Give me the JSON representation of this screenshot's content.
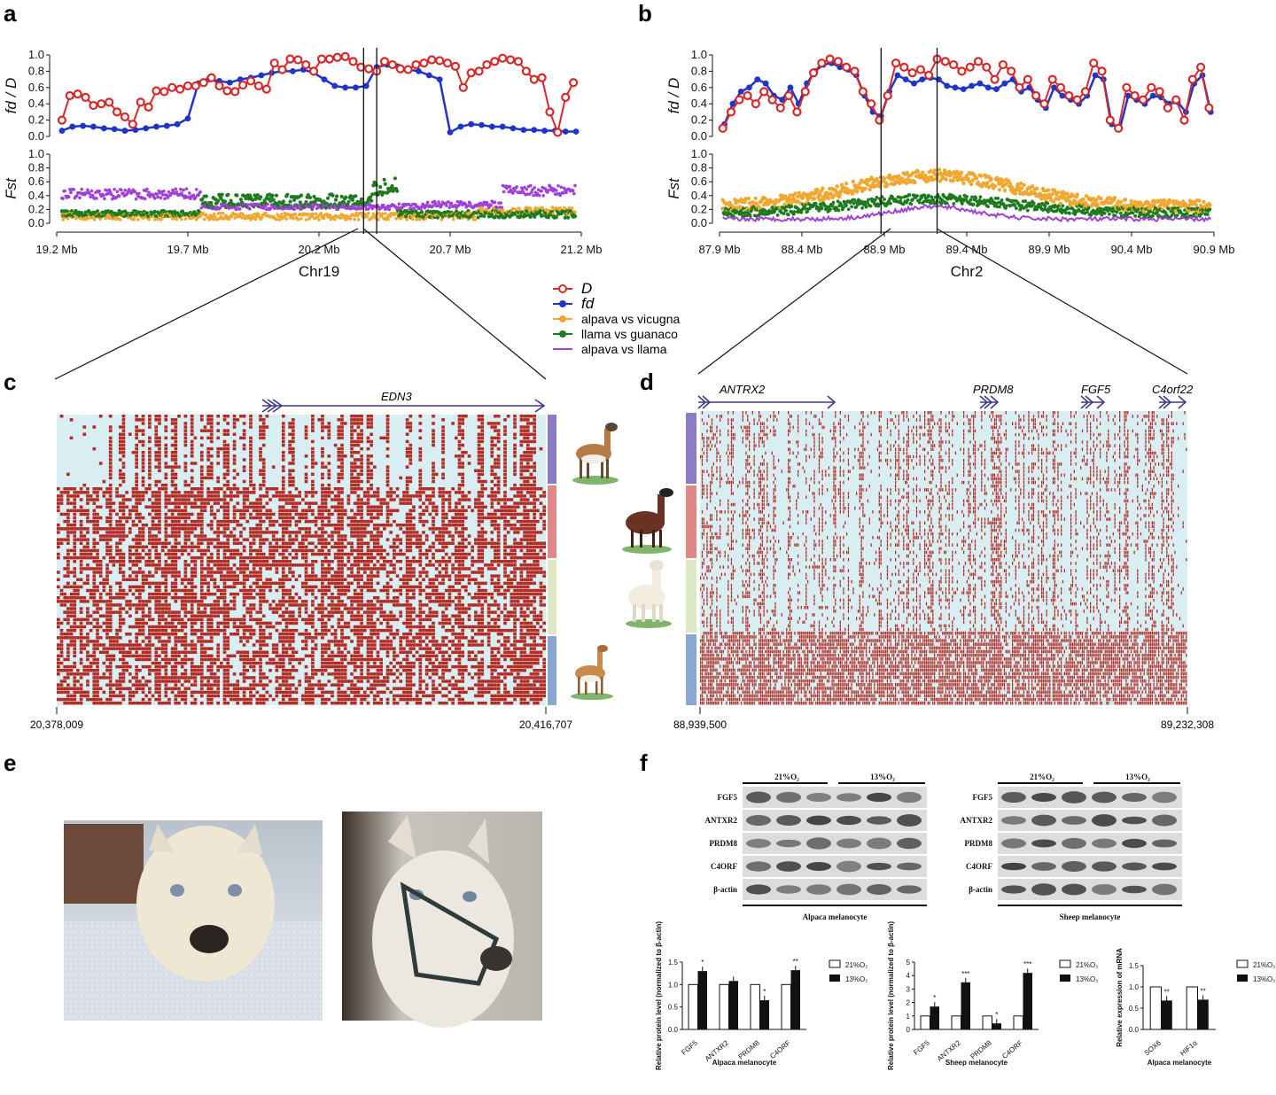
{
  "panels": {
    "a": "a",
    "b": "b",
    "c": "c",
    "d": "d",
    "e": "e",
    "f": "f"
  },
  "colors": {
    "D": "#d42a2a",
    "fd": "#1f35c8",
    "alp_vic": "#f0a830",
    "lla_gua": "#1e7a1e",
    "alp_lla": "#a040d8",
    "hap_light": "#d9eef2",
    "hap_dark": "#b22a22",
    "bar_c_1": "#8c7cc4",
    "bar_c_2": "#e08888",
    "bar_c_3": "#dfe8c6",
    "bar_c_4": "#8aa6d2"
  },
  "legend": [
    {
      "key": "D",
      "label": "D",
      "italic": true,
      "marker": "open"
    },
    {
      "key": "fd",
      "label": "fd",
      "italic": true,
      "marker": "filled"
    },
    {
      "key": "alp_vic",
      "label": "alpava vs vicugna",
      "marker": "filled"
    },
    {
      "key": "lla_gua",
      "label": "llama  vs guanaco",
      "marker": "filled"
    },
    {
      "key": "alp_lla",
      "label": "alpava vs llama",
      "marker": "line"
    }
  ],
  "chart_data": [
    {
      "id": "a",
      "type": "scatter",
      "xlabel": "Chr19",
      "x_range": [
        19.2,
        21.2
      ],
      "x_ticks": [
        19.2,
        19.7,
        20.2,
        20.7,
        21.2
      ],
      "x_tick_labels": [
        "19.2 Mb",
        "19.7 Mb",
        "20.2 Mb",
        "20.7 Mb",
        "21.2 Mb"
      ],
      "top": {
        "ylabel": "fd / D",
        "ylim": [
          0,
          1
        ],
        "y_ticks": [
          "0.0",
          "0.2",
          "0.4",
          "0.6",
          "0.8",
          "1.0"
        ],
        "D_x": [
          19.22,
          19.25,
          19.28,
          19.31,
          19.34,
          19.37,
          19.4,
          19.43,
          19.46,
          19.49,
          19.52,
          19.55,
          19.58,
          19.61,
          19.64,
          19.67,
          19.7,
          19.73,
          19.76,
          19.79,
          19.82,
          19.85,
          19.88,
          19.91,
          19.94,
          19.97,
          20.0,
          20.03,
          20.06,
          20.09,
          20.12,
          20.15,
          20.18,
          20.21,
          20.24,
          20.27,
          20.3,
          20.33,
          20.36,
          20.39,
          20.42,
          20.45,
          20.48,
          20.51,
          20.54,
          20.57,
          20.6,
          20.63,
          20.66,
          20.69,
          20.72,
          20.75,
          20.78,
          20.81,
          20.84,
          20.87,
          20.9,
          20.93,
          20.96,
          20.99,
          21.02,
          21.05,
          21.08,
          21.11,
          21.14,
          21.17
        ],
        "D_y": [
          0.2,
          0.5,
          0.52,
          0.48,
          0.38,
          0.4,
          0.42,
          0.3,
          0.24,
          0.15,
          0.42,
          0.36,
          0.56,
          0.55,
          0.6,
          0.58,
          0.62,
          0.62,
          0.66,
          0.72,
          0.62,
          0.56,
          0.55,
          0.63,
          0.68,
          0.62,
          0.58,
          0.9,
          0.82,
          0.95,
          0.94,
          0.88,
          0.8,
          0.95,
          0.95,
          0.97,
          0.98,
          0.92,
          0.85,
          0.83,
          0.8,
          0.92,
          0.88,
          0.83,
          0.82,
          0.88,
          0.9,
          0.94,
          0.93,
          0.9,
          0.86,
          0.6,
          0.78,
          0.8,
          0.88,
          0.92,
          0.96,
          0.94,
          0.92,
          0.8,
          0.7,
          0.72,
          0.3,
          0.05,
          0.48,
          0.66
        ],
        "fd_x": [
          19.22,
          19.26,
          19.3,
          19.34,
          19.38,
          19.42,
          19.46,
          19.5,
          19.54,
          19.58,
          19.62,
          19.66,
          19.7,
          19.74,
          19.78,
          19.82,
          19.86,
          19.9,
          19.94,
          19.98,
          20.02,
          20.06,
          20.1,
          20.14,
          20.18,
          20.22,
          20.26,
          20.3,
          20.34,
          20.38,
          20.42,
          20.46,
          20.5,
          20.54,
          20.58,
          20.62,
          20.66,
          20.7,
          20.74,
          20.78,
          20.82,
          20.86,
          20.9,
          20.94,
          20.98,
          21.02,
          21.06,
          21.1,
          21.14,
          21.18
        ],
        "fd_y": [
          0.07,
          0.12,
          0.13,
          0.12,
          0.1,
          0.09,
          0.07,
          0.08,
          0.1,
          0.12,
          0.13,
          0.15,
          0.22,
          0.65,
          0.7,
          0.68,
          0.66,
          0.7,
          0.72,
          0.75,
          0.78,
          0.8,
          0.8,
          0.82,
          0.78,
          0.7,
          0.62,
          0.6,
          0.6,
          0.62,
          0.85,
          0.88,
          0.86,
          0.82,
          0.8,
          0.75,
          0.7,
          0.05,
          0.12,
          0.15,
          0.14,
          0.12,
          0.12,
          0.1,
          0.08,
          0.08,
          0.07,
          0.07,
          0.06,
          0.06
        ]
      },
      "bottom": {
        "ylabel": "Fst",
        "ylim": [
          0,
          1
        ],
        "y_ticks": [
          "0.0",
          "0.2",
          "0.4",
          "0.6",
          "0.8",
          "1.0"
        ]
      }
    },
    {
      "id": "b",
      "type": "scatter",
      "xlabel": "Chr2",
      "x_range": [
        87.9,
        90.9
      ],
      "x_ticks": [
        87.9,
        88.4,
        88.9,
        89.4,
        89.9,
        90.4,
        90.9
      ],
      "x_tick_labels": [
        "87.9 Mb",
        "88.4 Mb",
        "88.9 Mb",
        "89.4 Mb",
        "89.9 Mb",
        "90.4 Mb",
        "90.9 Mb"
      ],
      "top": {
        "ylabel": "fd / D",
        "ylim": [
          0,
          1
        ],
        "y_ticks": [
          "0.0",
          "0.2",
          "0.4",
          "0.6",
          "0.8",
          "1.0"
        ],
        "D_x": [
          87.92,
          87.97,
          88.02,
          88.07,
          88.12,
          88.17,
          88.22,
          88.27,
          88.32,
          88.37,
          88.42,
          88.47,
          88.52,
          88.57,
          88.62,
          88.67,
          88.72,
          88.77,
          88.82,
          88.87,
          88.92,
          88.97,
          89.02,
          89.07,
          89.12,
          89.17,
          89.22,
          89.27,
          89.32,
          89.37,
          89.42,
          89.47,
          89.52,
          89.57,
          89.62,
          89.67,
          89.72,
          89.77,
          89.82,
          89.87,
          89.92,
          89.97,
          90.02,
          90.07,
          90.12,
          90.17,
          90.22,
          90.27,
          90.32,
          90.37,
          90.42,
          90.47,
          90.52,
          90.57,
          90.62,
          90.67,
          90.72,
          90.77,
          90.82,
          90.87
        ],
        "D_y": [
          0.1,
          0.3,
          0.45,
          0.5,
          0.4,
          0.55,
          0.45,
          0.35,
          0.5,
          0.3,
          0.55,
          0.78,
          0.9,
          0.95,
          0.92,
          0.85,
          0.8,
          0.55,
          0.4,
          0.2,
          0.5,
          0.9,
          0.85,
          0.78,
          0.82,
          0.75,
          0.95,
          0.92,
          0.88,
          0.8,
          0.85,
          0.92,
          0.85,
          0.7,
          0.88,
          0.8,
          0.6,
          0.7,
          0.5,
          0.4,
          0.7,
          0.6,
          0.5,
          0.45,
          0.55,
          0.9,
          0.8,
          0.2,
          0.1,
          0.6,
          0.5,
          0.45,
          0.6,
          0.55,
          0.35,
          0.45,
          0.2,
          0.7,
          0.85,
          0.35
        ],
        "fd_x": [
          87.93,
          87.98,
          88.03,
          88.08,
          88.13,
          88.18,
          88.23,
          88.28,
          88.33,
          88.38,
          88.43,
          88.48,
          88.53,
          88.58,
          88.63,
          88.68,
          88.73,
          88.78,
          88.83,
          88.88,
          88.93,
          88.98,
          89.03,
          89.08,
          89.13,
          89.18,
          89.23,
          89.28,
          89.33,
          89.38,
          89.43,
          89.48,
          89.53,
          89.58,
          89.63,
          89.68,
          89.73,
          89.78,
          89.83,
          89.88,
          89.93,
          89.98,
          90.03,
          90.08,
          90.13,
          90.18,
          90.23,
          90.28,
          90.33,
          90.38,
          90.43,
          90.48,
          90.53,
          90.58,
          90.63,
          90.68,
          90.73,
          90.78,
          90.83,
          90.88
        ],
        "fd_y": [
          0.15,
          0.4,
          0.55,
          0.6,
          0.7,
          0.65,
          0.5,
          0.45,
          0.6,
          0.4,
          0.65,
          0.8,
          0.88,
          0.9,
          0.85,
          0.82,
          0.75,
          0.5,
          0.3,
          0.25,
          0.55,
          0.75,
          0.7,
          0.65,
          0.7,
          0.72,
          0.7,
          0.62,
          0.6,
          0.58,
          0.62,
          0.65,
          0.6,
          0.58,
          0.65,
          0.7,
          0.55,
          0.6,
          0.45,
          0.35,
          0.6,
          0.5,
          0.45,
          0.4,
          0.5,
          0.75,
          0.7,
          0.15,
          0.1,
          0.5,
          0.45,
          0.4,
          0.5,
          0.48,
          0.4,
          0.42,
          0.3,
          0.65,
          0.75,
          0.3
        ]
      },
      "bottom": {
        "ylabel": "Fst",
        "ylim": [
          0,
          1
        ],
        "y_ticks": [
          "0.0",
          "0.2",
          "0.4",
          "0.6",
          "0.8",
          "1.0"
        ]
      }
    },
    {
      "id": "f1",
      "type": "bar",
      "title": "",
      "categories": [
        "FGF5",
        "ANTXR2",
        "PRDM8",
        "C4ORF"
      ],
      "ylim": [
        0,
        1.5
      ],
      "y_ticks": [
        "0.0",
        "0.5",
        "1.0",
        "1.5"
      ],
      "ylabel": "Relative protein level (normalized to β-actin)",
      "xlabel": "Alpaca melanocyte",
      "series": [
        {
          "name": "21%O2",
          "values": [
            1.0,
            1.0,
            1.0,
            1.0
          ]
        },
        {
          "name": "13%O2",
          "values": [
            1.3,
            1.08,
            0.65,
            1.32
          ]
        }
      ],
      "significance": [
        "*",
        "",
        "*",
        "**"
      ]
    },
    {
      "id": "f2",
      "type": "bar",
      "title": "",
      "categories": [
        "FGF5",
        "ANTXR2",
        "PRDM8",
        "C4ORF"
      ],
      "ylim": [
        0,
        5
      ],
      "y_ticks": [
        "0",
        "1",
        "2",
        "3",
        "4",
        "5"
      ],
      "ylabel": "Relative protein level (normalized to β-actin)",
      "xlabel": "Sheep melanocyte",
      "series": [
        {
          "name": "21%O2",
          "values": [
            1.0,
            1.0,
            1.0,
            1.0
          ]
        },
        {
          "name": "13%O2",
          "values": [
            1.7,
            3.5,
            0.45,
            4.2
          ]
        }
      ],
      "significance": [
        "*",
        "***",
        "*",
        "***"
      ]
    },
    {
      "id": "f3",
      "type": "bar",
      "title": "",
      "categories": [
        "SOX6",
        "HIF1α"
      ],
      "ylim": [
        0,
        1.5
      ],
      "y_ticks": [
        "0.0",
        "0.5",
        "1.0",
        "1.5"
      ],
      "ylabel": "Relative expression of mRNA",
      "xlabel": "Alpaca melanocyte",
      "series": [
        {
          "name": "21%O2",
          "values": [
            1.0,
            1.0
          ]
        },
        {
          "name": "13%O2",
          "values": [
            0.68,
            0.7
          ]
        }
      ],
      "significance": [
        "**",
        "**"
      ]
    }
  ],
  "panel_c": {
    "gene": "EDN3",
    "start": "20,378,009",
    "end": "20,416,707"
  },
  "panel_d": {
    "genes": [
      "ANTRX2",
      "PRDM8",
      "FGF5",
      "C4orf22"
    ],
    "start": "88,939,500",
    "end": "89,232,308"
  },
  "panel_f": {
    "blot_left": {
      "cond1": "21%O₂",
      "cond2": "13%O₂",
      "rows": [
        "FGF5",
        "ANTXR2",
        "PRDM8",
        "C4ORF",
        "β-actin"
      ],
      "caption": "Alpaca melanocyte"
    },
    "blot_right": {
      "cond1": "21%O₂",
      "cond2": "13%O₂",
      "rows": [
        "FGF5",
        "ANTXR2",
        "PRDM8",
        "C4ORF",
        "β-actin"
      ],
      "caption": "Sheep melanocyte"
    },
    "legend": [
      "21%O₂",
      "13%O₂"
    ]
  }
}
